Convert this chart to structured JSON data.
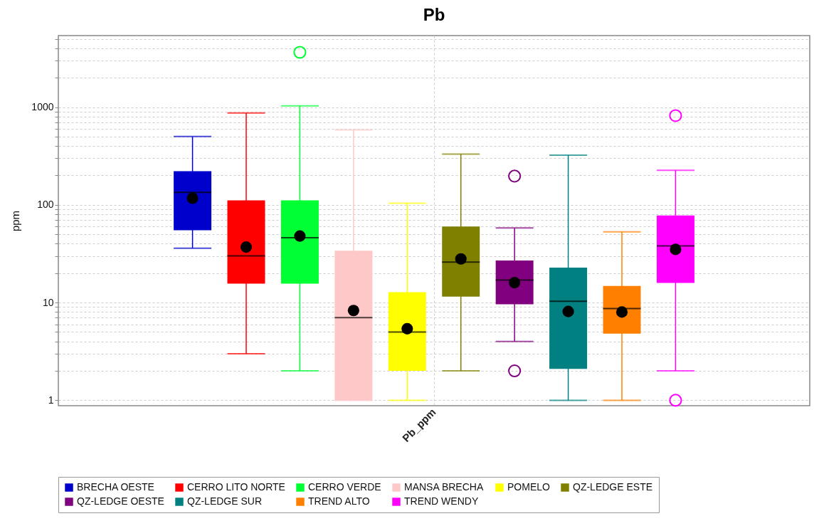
{
  "chart_data": {
    "type": "box",
    "title": "Pb",
    "ylabel": "ppm",
    "categories": [
      "Pb_ppm"
    ],
    "log": true,
    "grid": true,
    "legend": "bottom",
    "ylim": [
      0.88,
      5400
    ],
    "yticks": [
      1,
      {
        "value": 2,
        "label": null
      },
      {
        "value": 3,
        "label": null
      },
      {
        "value": 4,
        "label": null
      },
      {
        "value": 5,
        "label": null
      },
      {
        "value": 6,
        "label": null
      },
      {
        "value": 7,
        "label": null
      },
      {
        "value": 8,
        "label": null
      },
      {
        "value": 9,
        "label": null
      },
      10,
      {
        "value": 20,
        "label": null
      },
      {
        "value": 30,
        "label": null
      },
      {
        "value": 40,
        "label": null
      },
      {
        "value": 50,
        "label": null
      },
      {
        "value": 60,
        "label": null
      },
      {
        "value": 70,
        "label": null
      },
      {
        "value": 80,
        "label": null
      },
      {
        "value": 90,
        "label": null
      },
      100,
      {
        "value": 200,
        "label": null
      },
      {
        "value": 300,
        "label": null
      },
      {
        "value": 400,
        "label": null
      },
      {
        "value": 500,
        "label": null
      },
      {
        "value": 600,
        "label": null
      },
      {
        "value": 700,
        "label": null
      },
      {
        "value": 800,
        "label": null
      },
      {
        "value": 900,
        "label": null
      },
      1000,
      {
        "value": 2000,
        "label": null
      },
      {
        "value": 3000,
        "label": null
      },
      {
        "value": 4000,
        "label": null
      },
      {
        "value": 5000,
        "label": null
      }
    ],
    "series": [
      {
        "name": "BRECHA OESTE",
        "color": "#0000cc",
        "boxes": [
          {
            "low": 36,
            "q1": 55,
            "median": 134,
            "q3": 221,
            "high": 500,
            "mean": 117
          }
        ]
      },
      {
        "name": "CERRO LITO NORTE",
        "color": "#ff0000",
        "boxes": [
          {
            "low": 3,
            "q1": 15.6,
            "median": 30,
            "q3": 111,
            "high": 870,
            "mean": 37
          }
        ]
      },
      {
        "name": "CERRO VERDE",
        "color": "#00ff33",
        "boxes": [
          {
            "low": 2,
            "q1": 15.6,
            "median": 46,
            "q3": 111,
            "high": 1030,
            "mean": 48,
            "outliers": [
              3640
            ]
          }
        ]
      },
      {
        "name": "MANSA BRECHA",
        "color": "#ffc8c8",
        "boxes": [
          {
            "low": 1,
            "q1": 1,
            "median": 7,
            "q3": 34,
            "high": 586,
            "mean": 8.3
          }
        ]
      },
      {
        "name": "POMELO",
        "color": "#ffff00",
        "boxes": [
          {
            "low": 1,
            "q1": 2,
            "median": 5,
            "q3": 12.8,
            "high": 104,
            "mean": 5.4
          }
        ]
      },
      {
        "name": "QZ-LEDGE ESTE",
        "color": "#808000",
        "boxes": [
          {
            "low": 2,
            "q1": 11.5,
            "median": 26,
            "q3": 60,
            "high": 331,
            "mean": 28
          }
        ]
      },
      {
        "name": "QZ-LEDGE OESTE",
        "color": "#800080",
        "boxes": [
          {
            "low": 4,
            "q1": 9.6,
            "median": 17,
            "q3": 27,
            "high": 58,
            "mean": 16,
            "outliers": [
              197,
              2
            ]
          }
        ]
      },
      {
        "name": "QZ-LEDGE SUR",
        "color": "#008080",
        "boxes": [
          {
            "low": 1,
            "q1": 2.1,
            "median": 10.3,
            "q3": 22.8,
            "high": 322,
            "mean": 8.1
          }
        ]
      },
      {
        "name": "TREND ALTO",
        "color": "#ff8000",
        "boxes": [
          {
            "low": 1,
            "q1": 4.8,
            "median": 8.7,
            "q3": 14.8,
            "high": 53,
            "mean": 8
          }
        ]
      },
      {
        "name": "TREND WENDY",
        "color": "#ff00ff",
        "boxes": [
          {
            "low": 2,
            "q1": 15.9,
            "median": 38,
            "q3": 78,
            "high": 226,
            "mean": 35,
            "outliers": [
              819,
              1
            ]
          }
        ]
      }
    ]
  }
}
